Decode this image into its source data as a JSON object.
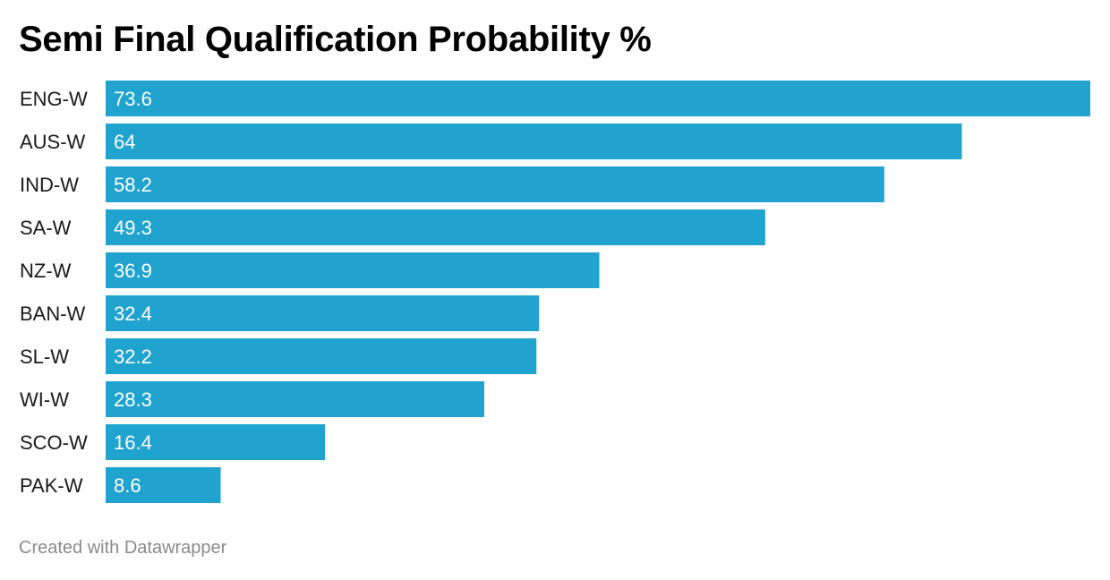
{
  "chart_data": {
    "type": "bar",
    "orientation": "horizontal",
    "title": "Semi Final Qualification Probability %",
    "categories": [
      "ENG-W",
      "AUS-W",
      "IND-W",
      "SA-W",
      "NZ-W",
      "BAN-W",
      "SL-W",
      "WI-W",
      "SCO-W",
      "PAK-W"
    ],
    "values": [
      73.6,
      64,
      58.2,
      49.3,
      36.9,
      32.4,
      32.2,
      28.3,
      16.4,
      8.6
    ],
    "value_labels": [
      "73.6",
      "64",
      "58.2",
      "49.3",
      "36.9",
      "32.4",
      "32.2",
      "28.3",
      "16.4",
      "8.6"
    ],
    "xlim": [
      0,
      73.6
    ],
    "grid": false,
    "legend": "none",
    "bar_color": "#21a3d0"
  },
  "footer": {
    "credit": "Created with Datawrapper"
  }
}
